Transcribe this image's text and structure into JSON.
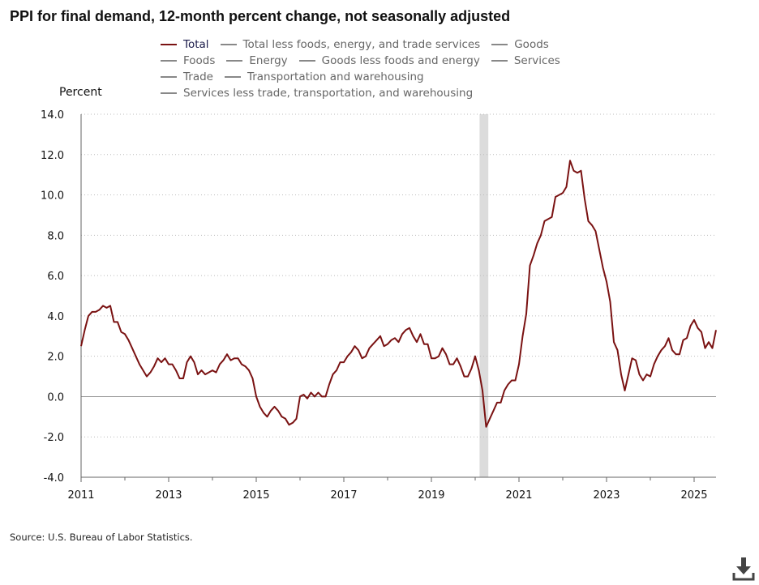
{
  "title": "PPI for final demand, 12-month percent change, not seasonally adjusted",
  "legend": {
    "rows": [
      [
        {
          "label": "Total",
          "color": "#7a1212",
          "active": true
        },
        {
          "label": "Total less foods, energy, and trade services",
          "color": "#888888",
          "active": false
        },
        {
          "label": "Goods",
          "color": "#888888",
          "active": false
        }
      ],
      [
        {
          "label": "Foods",
          "color": "#888888",
          "active": false
        },
        {
          "label": "Energy",
          "color": "#888888",
          "active": false
        },
        {
          "label": "Goods less foods and energy",
          "color": "#888888",
          "active": false
        },
        {
          "label": "Services",
          "color": "#888888",
          "active": false
        }
      ],
      [
        {
          "label": "Trade",
          "color": "#888888",
          "active": false
        },
        {
          "label": "Transportation and warehousing",
          "color": "#888888",
          "active": false
        }
      ],
      [
        {
          "label": "Services less trade, transportation, and warehousing",
          "color": "#888888",
          "active": false
        }
      ]
    ]
  },
  "source": "Source: U.S. Bureau of Labor Statistics.",
  "download_icon": "download-icon",
  "chart_data": {
    "type": "line",
    "ylabel": "Percent",
    "xlabel": "",
    "ylim": [
      -4.0,
      14.0
    ],
    "yticks": [
      "14.0",
      "12.0",
      "10.0",
      "8.0",
      "6.0",
      "4.0",
      "2.0",
      "0.0",
      "-2.0",
      "-4.0"
    ],
    "xlim": [
      2011.0,
      2025.5
    ],
    "xticks": [
      "2011",
      "2013",
      "2015",
      "2017",
      "2019",
      "2021",
      "2023",
      "2025"
    ],
    "grid": "horizontal dotted",
    "recession_shading": [
      2020.1,
      2020.3
    ],
    "colors": {
      "total": "#7a1212",
      "recession": "#dcdcdc",
      "grid": "#bbbbbb"
    },
    "series": [
      {
        "name": "Total",
        "x_start": 2011.0,
        "frequency": "monthly",
        "values": [
          2.5,
          3.3,
          4.0,
          4.2,
          4.2,
          4.3,
          4.5,
          4.4,
          4.5,
          3.7,
          3.7,
          3.2,
          3.1,
          2.8,
          2.4,
          2.0,
          1.6,
          1.3,
          1.0,
          1.2,
          1.5,
          1.9,
          1.7,
          1.9,
          1.6,
          1.6,
          1.3,
          0.9,
          0.9,
          1.7,
          2.0,
          1.7,
          1.1,
          1.3,
          1.1,
          1.2,
          1.3,
          1.2,
          1.6,
          1.8,
          2.1,
          1.8,
          1.9,
          1.9,
          1.6,
          1.5,
          1.3,
          0.9,
          0.0,
          -0.5,
          -0.8,
          -1.0,
          -0.7,
          -0.5,
          -0.7,
          -1.0,
          -1.1,
          -1.4,
          -1.3,
          -1.1,
          0.0,
          0.1,
          -0.1,
          0.2,
          0.0,
          0.2,
          0.0,
          0.0,
          0.6,
          1.1,
          1.3,
          1.7,
          1.7,
          2.0,
          2.2,
          2.5,
          2.3,
          1.9,
          2.0,
          2.4,
          2.6,
          2.8,
          3.0,
          2.5,
          2.6,
          2.8,
          2.9,
          2.7,
          3.1,
          3.3,
          3.4,
          3.0,
          2.7,
          3.1,
          2.6,
          2.6,
          1.9,
          1.9,
          2.0,
          2.4,
          2.1,
          1.6,
          1.6,
          1.9,
          1.5,
          1.0,
          1.0,
          1.4,
          2.0,
          1.3,
          0.3,
          -1.5,
          -1.1,
          -0.7,
          -0.3,
          -0.3,
          0.3,
          0.6,
          0.8,
          0.8,
          1.6,
          3.0,
          4.1,
          6.5,
          7.0,
          7.6,
          8.0,
          8.7,
          8.8,
          8.9,
          9.9,
          10.0,
          10.1,
          10.4,
          11.7,
          11.2,
          11.1,
          11.2,
          9.8,
          8.7,
          8.5,
          8.2,
          7.3,
          6.4,
          5.7,
          4.7,
          2.7,
          2.3,
          1.1,
          0.3,
          1.1,
          1.9,
          1.8,
          1.1,
          0.8,
          1.1,
          1.0,
          1.6,
          2.0,
          2.3,
          2.5,
          2.9,
          2.3,
          2.1,
          2.1,
          2.8,
          2.9,
          3.5,
          3.8,
          3.4,
          3.2,
          2.4,
          2.7,
          2.4,
          3.3
        ]
      }
    ]
  }
}
